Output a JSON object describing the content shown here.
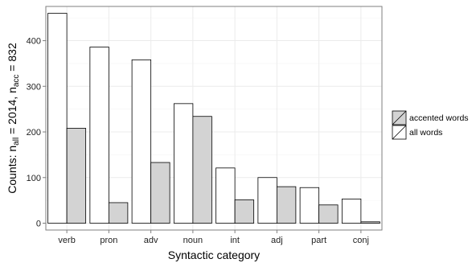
{
  "chart_data": {
    "type": "bar",
    "categories": [
      "verb",
      "pron",
      "adv",
      "noun",
      "int",
      "adj",
      "part",
      "conj"
    ],
    "series": [
      {
        "name": "all words",
        "color": "#ffffff",
        "values": [
          460,
          386,
          358,
          262,
          121,
          100,
          78,
          53
        ]
      },
      {
        "name": "accented words",
        "color": "#d3d3d3",
        "values": [
          208,
          45,
          133,
          234,
          51,
          80,
          40,
          3
        ]
      }
    ],
    "y_ticks": [
      "0",
      "100",
      "200",
      "300",
      "400"
    ],
    "ylim": [
      -15,
      475
    ],
    "xlabel": "Syntactic category",
    "ylabel": {
      "prefix": "Counts: n",
      "sub1": "all",
      "mid": " = 2014, n",
      "sub2": "acc",
      "suffix": " = 832"
    },
    "legend": {
      "position": "right",
      "entries": [
        "accented words",
        "all words"
      ]
    },
    "grid": true,
    "grid_color": "#ebebeb",
    "border_color": "#7f7f7f"
  }
}
